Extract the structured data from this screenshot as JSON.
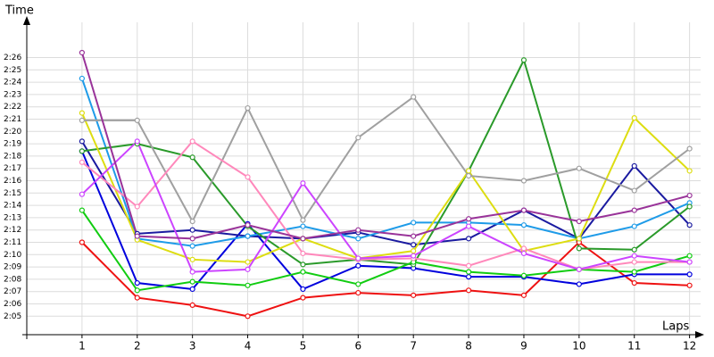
{
  "chart_data": {
    "type": "line",
    "x_label": "Laps",
    "y_label": "Time",
    "x": [
      1,
      2,
      3,
      4,
      5,
      6,
      7,
      8,
      9,
      10,
      11,
      12
    ],
    "xlim": [
      0,
      12.2
    ],
    "xticks": [
      1,
      2,
      3,
      4,
      5,
      6,
      7,
      8,
      9,
      10,
      11,
      12
    ],
    "ylim": [
      123.5,
      148.5
    ],
    "yticks": [
      {
        "value": 125,
        "label": "2:05"
      },
      {
        "value": 126,
        "label": "2:06"
      },
      {
        "value": 127,
        "label": "2:07"
      },
      {
        "value": 128,
        "label": "2:08"
      },
      {
        "value": 129,
        "label": "2:09"
      },
      {
        "value": 130,
        "label": "2:10"
      },
      {
        "value": 131,
        "label": "2:11"
      },
      {
        "value": 132,
        "label": "2:12"
      },
      {
        "value": 133,
        "label": "2:13"
      },
      {
        "value": 134,
        "label": "2:14"
      },
      {
        "value": 135,
        "label": "2:15"
      },
      {
        "value": 136,
        "label": "2:16"
      },
      {
        "value": 137,
        "label": "2:17"
      },
      {
        "value": 138,
        "label": "2:18"
      },
      {
        "value": 139,
        "label": "2:19"
      },
      {
        "value": 140,
        "label": "2:20"
      },
      {
        "value": 141,
        "label": "2:21"
      },
      {
        "value": 142,
        "label": "2:22"
      },
      {
        "value": 143,
        "label": "2:23"
      },
      {
        "value": 144,
        "label": "2:24"
      },
      {
        "value": 145,
        "label": "2:25"
      },
      {
        "value": 146,
        "label": "2:26"
      }
    ],
    "grid": true,
    "series": [
      {
        "color": "#ee1111",
        "values": [
          131.0,
          126.5,
          125.9,
          125.0,
          126.5,
          126.9,
          126.7,
          127.1,
          126.7,
          131.0,
          127.7,
          127.5
        ]
      },
      {
        "color": "#0000dd",
        "values": [
          138.4,
          127.7,
          127.2,
          132.5,
          127.2,
          129.1,
          128.9,
          128.2,
          128.2,
          127.6,
          128.4,
          128.4
        ]
      },
      {
        "color": "#1a1aa0",
        "values": [
          139.2,
          131.7,
          132.0,
          131.5,
          131.3,
          131.8,
          130.8,
          131.3,
          133.6,
          131.3,
          137.2,
          132.4
        ]
      },
      {
        "color": "#1e9be8",
        "values": [
          144.3,
          131.3,
          130.7,
          131.5,
          132.3,
          131.3,
          132.6,
          132.6,
          132.4,
          131.3,
          132.3,
          134.2
        ]
      },
      {
        "color": "#2a9a2a",
        "values": [
          138.4,
          139.0,
          137.9,
          132.3,
          129.2,
          129.6,
          129.2,
          136.8,
          145.8,
          130.5,
          130.4,
          133.9
        ]
      },
      {
        "color": "#11cc11",
        "values": [
          133.6,
          127.1,
          127.8,
          127.5,
          128.6,
          127.6,
          129.4,
          128.6,
          128.3,
          128.8,
          128.6,
          129.9
        ]
      },
      {
        "color": "#dddd11",
        "values": [
          141.5,
          131.2,
          129.6,
          129.4,
          131.3,
          129.7,
          130.3,
          136.8,
          130.3,
          131.3,
          141.1,
          136.8
        ]
      },
      {
        "color": "#a0a0a0",
        "values": [
          140.9,
          140.9,
          132.7,
          141.9,
          132.8,
          139.5,
          142.8,
          136.4,
          136.0,
          137.0,
          135.2,
          138.6
        ]
      },
      {
        "color": "#ff88bb",
        "values": [
          137.5,
          133.9,
          139.2,
          136.3,
          130.1,
          129.6,
          129.7,
          129.1,
          130.5,
          128.8,
          129.4,
          129.4
        ]
      },
      {
        "color": "#cc44ff",
        "values": [
          134.9,
          139.2,
          128.6,
          128.8,
          135.8,
          129.7,
          129.9,
          132.3,
          130.1,
          128.8,
          129.9,
          129.4
        ]
      },
      {
        "color": "#993399",
        "values": [
          146.4,
          131.5,
          131.3,
          132.4,
          131.3,
          132.0,
          131.5,
          132.9,
          133.6,
          132.7,
          133.6,
          134.8
        ]
      }
    ]
  }
}
